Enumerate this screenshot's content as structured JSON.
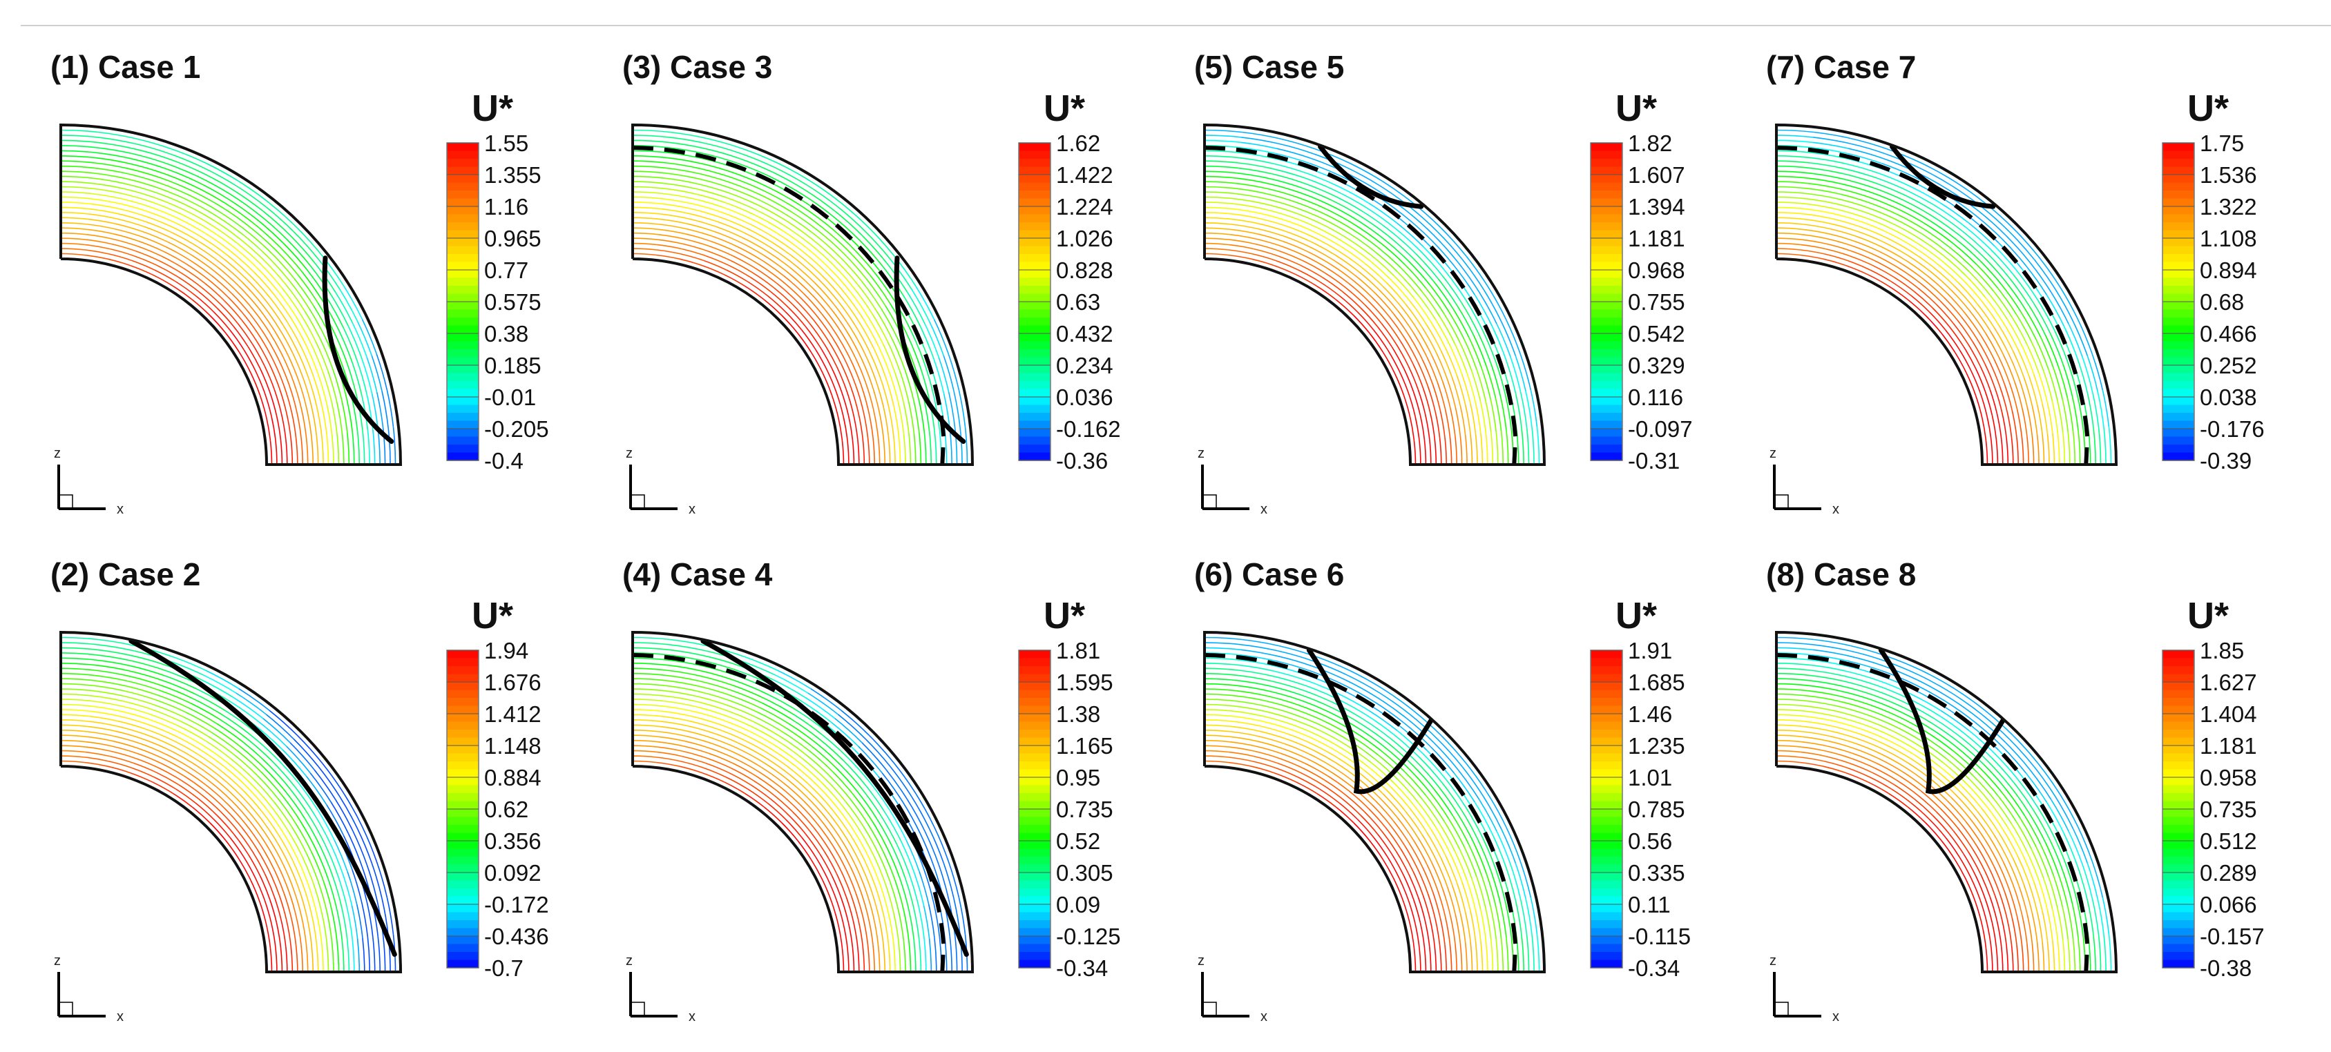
{
  "figure": {
    "colorbar_title": "U*",
    "axis_x": "x",
    "axis_z": "z",
    "colormap": [
      "#0000ff",
      "#0080ff",
      "#00ffff",
      "#00ff80",
      "#00ff00",
      "#80ff00",
      "#ffff00",
      "#ffbf00",
      "#ff8000",
      "#ff4000",
      "#ff0000"
    ],
    "panels": [
      {
        "id": "case1",
        "title": "(1) Case 1",
        "ticks": [
          "1.55",
          "1.355",
          "1.16",
          "0.965",
          "0.77",
          "0.575",
          "0.38",
          "0.185",
          "-0.01",
          "-0.205",
          "-0.4"
        ]
      },
      {
        "id": "case3",
        "title": "(3) Case 3",
        "ticks": [
          "1.62",
          "1.422",
          "1.224",
          "1.026",
          "0.828",
          "0.63",
          "0.432",
          "0.234",
          "0.036",
          "-0.162",
          "-0.36"
        ]
      },
      {
        "id": "case5",
        "title": "(5) Case 5",
        "ticks": [
          "1.82",
          "1.607",
          "1.394",
          "1.181",
          "0.968",
          "0.755",
          "0.542",
          "0.329",
          "0.116",
          "-0.097",
          "-0.31"
        ]
      },
      {
        "id": "case7",
        "title": "(7) Case 7",
        "ticks": [
          "1.75",
          "1.536",
          "1.322",
          "1.108",
          "0.894",
          "0.68",
          "0.466",
          "0.252",
          "0.038",
          "-0.176",
          "-0.39"
        ]
      },
      {
        "id": "case2",
        "title": "(2) Case 2",
        "ticks": [
          "1.94",
          "1.676",
          "1.412",
          "1.148",
          "0.884",
          "0.62",
          "0.356",
          "0.092",
          "-0.172",
          "-0.436",
          "-0.7"
        ]
      },
      {
        "id": "case4",
        "title": "(4) Case 4",
        "ticks": [
          "1.81",
          "1.595",
          "1.38",
          "1.165",
          "0.95",
          "0.735",
          "0.52",
          "0.305",
          "0.09",
          "-0.125",
          "-0.34"
        ]
      },
      {
        "id": "case6",
        "title": "(6) Case 6",
        "ticks": [
          "1.91",
          "1.685",
          "1.46",
          "1.235",
          "1.01",
          "0.785",
          "0.56",
          "0.335",
          "0.11",
          "-0.115",
          "-0.34"
        ]
      },
      {
        "id": "case8",
        "title": "(8) Case 8",
        "ticks": [
          "1.85",
          "1.627",
          "1.404",
          "1.181",
          "0.958",
          "0.735",
          "0.512",
          "0.289",
          "0.066",
          "-0.157",
          "-0.38"
        ]
      }
    ]
  }
}
